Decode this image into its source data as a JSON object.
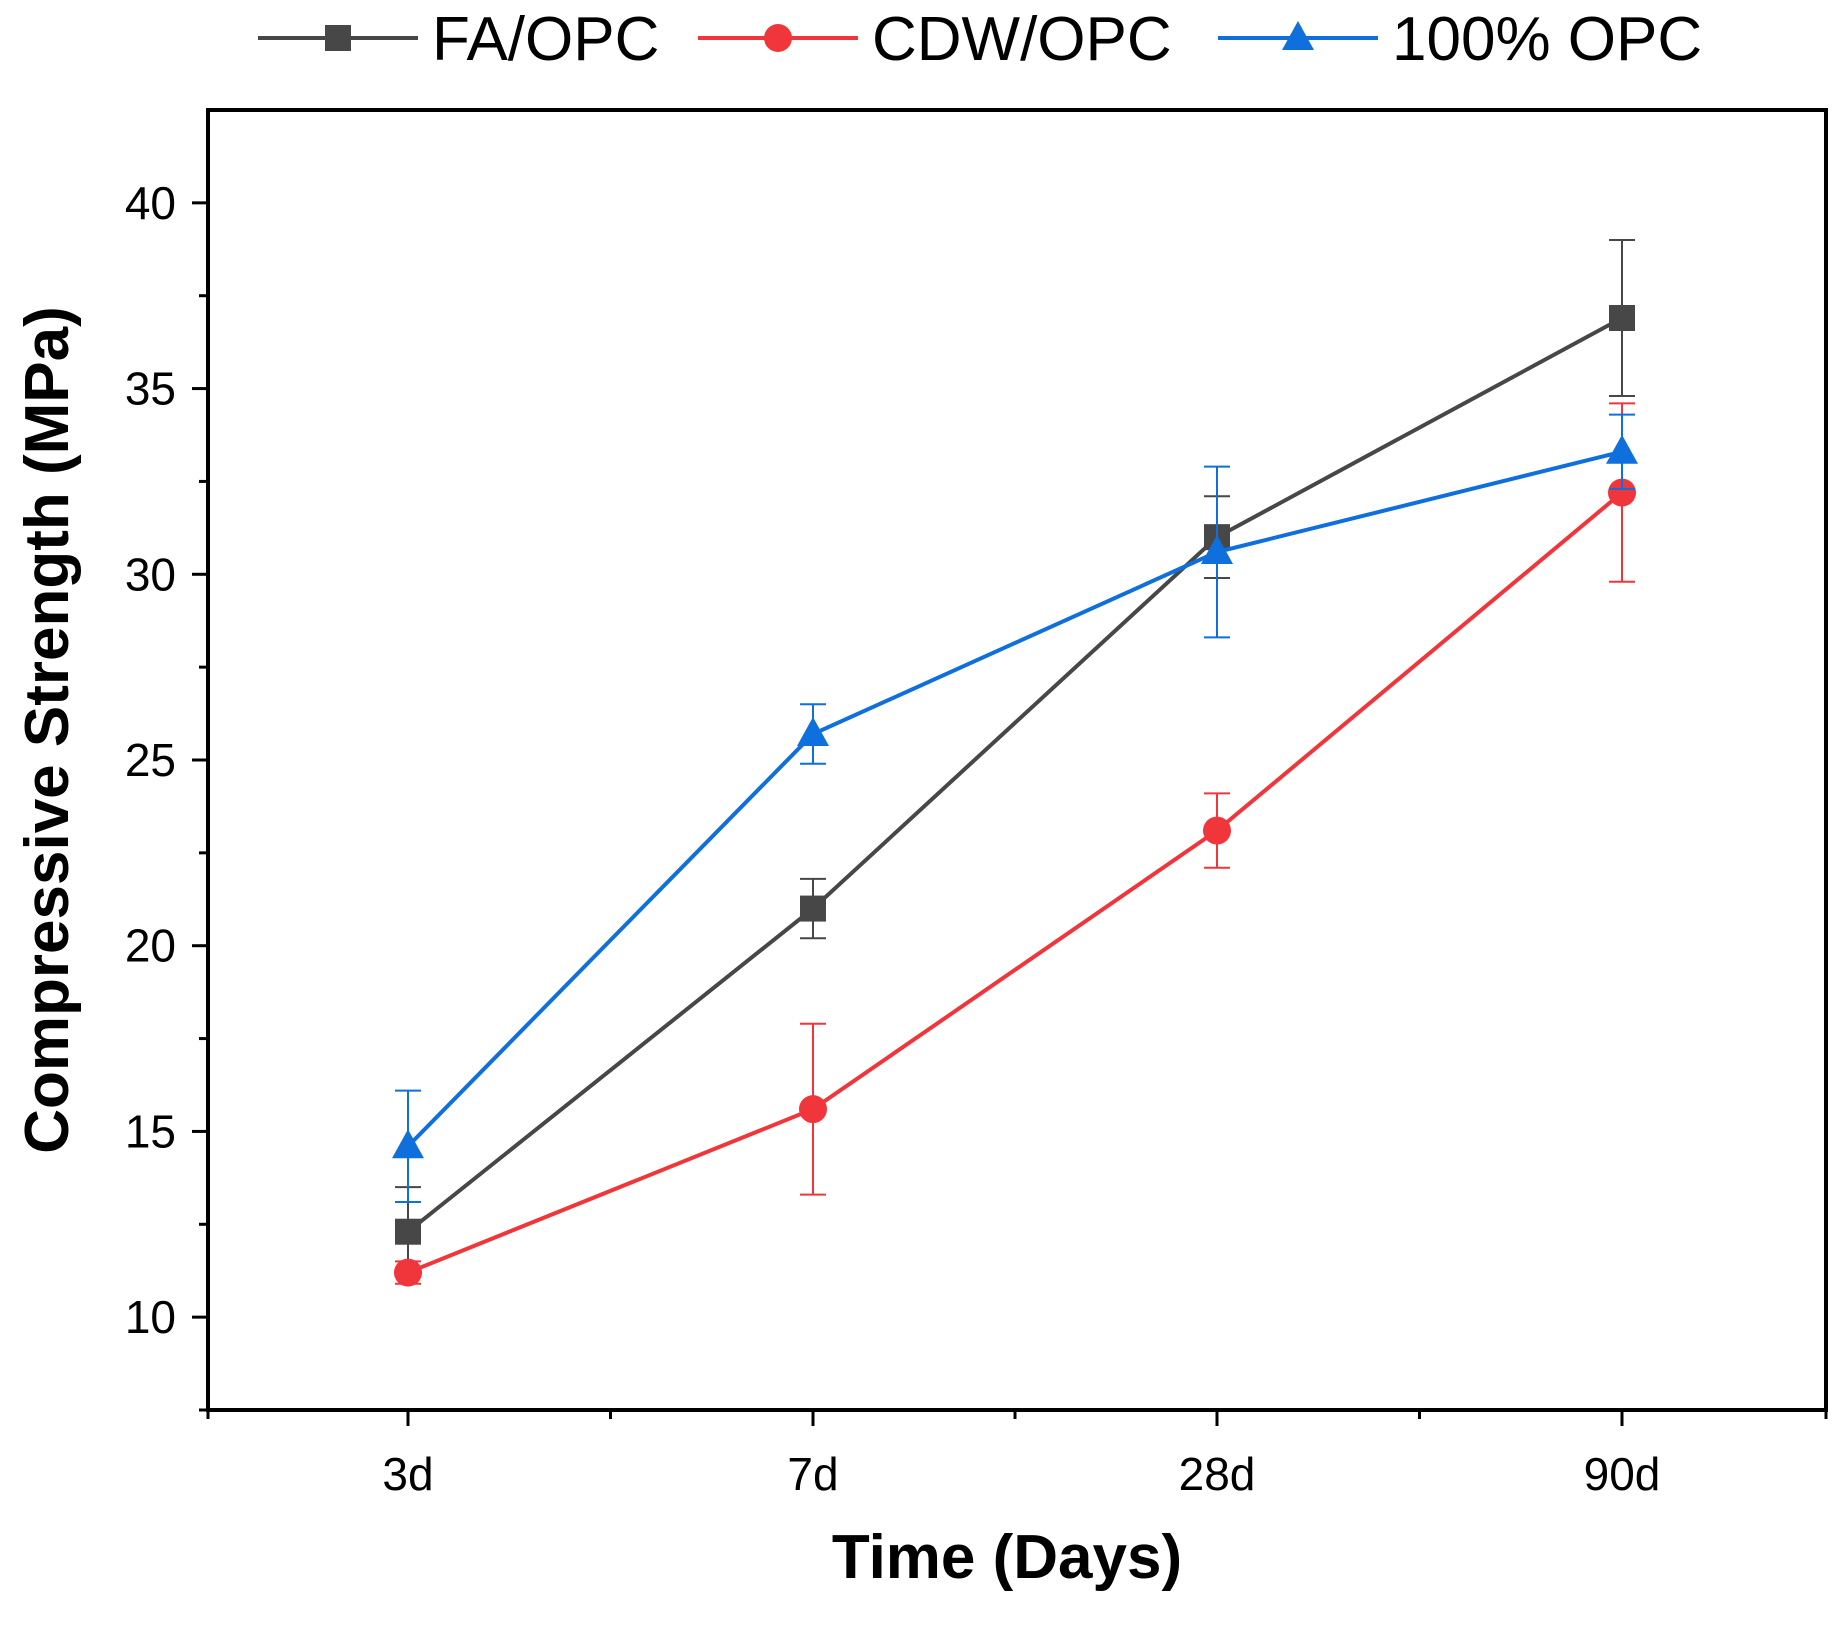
{
  "chart_data": {
    "type": "line",
    "categories": [
      "3d",
      "7d",
      "28d",
      "90d"
    ],
    "xlabel": "Time (Days)",
    "ylabel": "Compressive Strength (MPa)",
    "ylim": [
      7.5,
      42.5
    ],
    "yticks": [
      10,
      15,
      20,
      25,
      30,
      35,
      40
    ],
    "grid": false,
    "legend_position": "top",
    "series": [
      {
        "name": "FA/OPC",
        "color": "#474747",
        "marker": "square",
        "values": [
          12.3,
          21.0,
          31.0,
          36.9
        ],
        "errors": [
          1.2,
          0.8,
          1.1,
          2.1
        ]
      },
      {
        "name": "CDW/OPC",
        "color": "#f0363b",
        "marker": "circle",
        "values": [
          11.2,
          15.6,
          23.1,
          32.2
        ],
        "errors": [
          0.3,
          2.3,
          1.0,
          2.4
        ]
      },
      {
        "name": "100% OPC",
        "color": "#0e6fdd",
        "marker": "triangle",
        "values": [
          14.6,
          25.7,
          30.6,
          33.3
        ],
        "errors": [
          1.5,
          0.8,
          2.3,
          1.0
        ]
      }
    ]
  }
}
